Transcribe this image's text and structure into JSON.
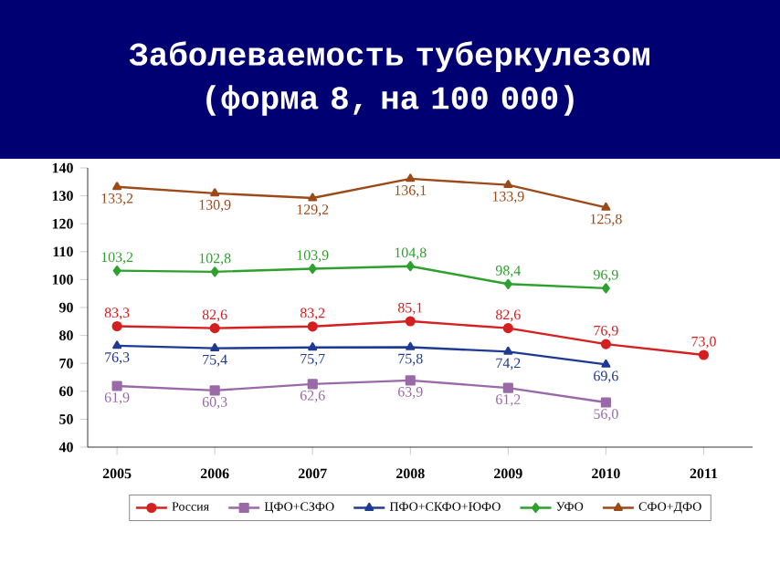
{
  "chart_data": {
    "type": "line",
    "title": "Заболеваемость туберкулезом (форма 8, на 100 000)",
    "categories": [
      "2005",
      "2006",
      "2007",
      "2008",
      "2009",
      "2010",
      "2011"
    ],
    "ylim": [
      40,
      140
    ],
    "yticks": [
      40,
      50,
      60,
      70,
      80,
      90,
      100,
      110,
      120,
      130,
      140
    ],
    "grid": false,
    "legend": "bottom",
    "series": [
      {
        "name": "Россия",
        "color": "#d42020",
        "marker": "circle",
        "values": [
          83.3,
          82.6,
          83.2,
          85.1,
          82.6,
          76.9,
          73.0
        ],
        "value_labels": [
          "83,3",
          "82,6",
          "83,2",
          "85,1",
          "82,6",
          "76,9",
          "73,0"
        ]
      },
      {
        "name": "ЦФО+СЗФО",
        "color": "#9a6aa8",
        "marker": "square",
        "values": [
          61.9,
          60.3,
          62.6,
          63.9,
          61.2,
          56.0,
          null
        ],
        "value_labels": [
          "61,9",
          "60,3",
          "62,6",
          "63,9",
          "61,2",
          "56,0",
          null
        ]
      },
      {
        "name": "ПФО+СКФО+ЮФО",
        "color": "#1f3a93",
        "marker": "triangle",
        "values": [
          76.3,
          75.4,
          75.7,
          75.8,
          74.2,
          69.6,
          null
        ],
        "value_labels": [
          "76,3",
          "75,4",
          "75,7",
          "75,8",
          "74,2",
          "69,6",
          null
        ]
      },
      {
        "name": "УФО",
        "color": "#2ea02e",
        "marker": "diamond",
        "values": [
          103.2,
          102.8,
          103.9,
          104.8,
          98.4,
          96.9,
          null
        ],
        "value_labels": [
          "103,2",
          "102,8",
          "103,9",
          "104,8",
          "98,4",
          "96,9",
          null
        ]
      },
      {
        "name": "СФО+ДФО",
        "color": "#9c4a1a",
        "marker": "triangle",
        "values": [
          133.2,
          130.9,
          129.2,
          136.1,
          133.9,
          125.8,
          null
        ],
        "value_labels": [
          "133,2",
          "130,9",
          "129,2",
          "136,1",
          "133,9",
          "125,8",
          null
        ]
      }
    ]
  }
}
